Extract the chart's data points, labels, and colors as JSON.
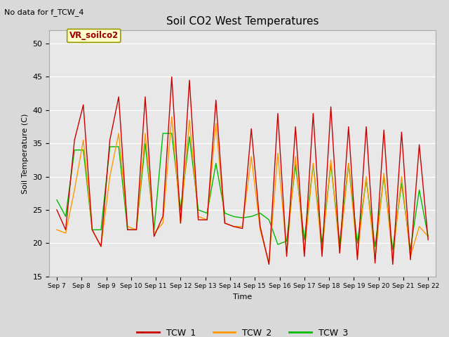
{
  "title": "Soil CO2 West Temperatures",
  "no_data_label": "No data for f_TCW_4",
  "vr_label": "VR_soilco2",
  "xlabel": "Time",
  "ylabel": "Soil Temperature (C)",
  "ylim": [
    15,
    52
  ],
  "yticks": [
    15,
    20,
    25,
    30,
    35,
    40,
    45,
    50
  ],
  "bg_color": "#e8e8e8",
  "legend_entries": [
    "TCW_1",
    "TCW_2",
    "TCW_3"
  ],
  "line_colors": [
    "#cc0000",
    "#ff9900",
    "#00bb00"
  ],
  "x_labels": [
    "Sep 7",
    "Sep 8",
    "Sep 9",
    "Sep 10",
    "Sep 11",
    "Sep 12",
    "Sep 13",
    "Sep 14",
    "Sep 15",
    "Sep 16",
    "Sep 17",
    "Sep 18",
    "Sep 19",
    "Sep 20",
    "Sep 21",
    "Sep 22"
  ],
  "tcw1": [
    25.0,
    22.0,
    35.5,
    40.8,
    22.0,
    19.5,
    35.5,
    42.0,
    22.0,
    22.0,
    42.0,
    21.0,
    24.0,
    45.0,
    23.0,
    44.5,
    23.5,
    23.5,
    41.5,
    23.0,
    22.5,
    22.2,
    37.2,
    22.5,
    16.8,
    39.5,
    18.0,
    37.5,
    18.0,
    39.5,
    18.0,
    40.5,
    18.5,
    37.5,
    17.5,
    37.5,
    17.0,
    37.0,
    16.8,
    36.7,
    17.5,
    34.8,
    20.5
  ],
  "tcw2": [
    22.0,
    21.5,
    28.0,
    35.5,
    22.0,
    19.5,
    30.0,
    36.5,
    22.5,
    22.0,
    36.5,
    21.5,
    23.0,
    39.0,
    23.0,
    38.5,
    24.0,
    23.5,
    38.0,
    23.0,
    22.5,
    22.5,
    33.0,
    22.0,
    17.0,
    33.5,
    18.5,
    33.0,
    18.5,
    32.0,
    18.5,
    32.5,
    18.5,
    32.0,
    18.0,
    30.0,
    17.5,
    30.5,
    17.5,
    30.0,
    18.0,
    22.5,
    21.0
  ],
  "tcw3": [
    26.5,
    24.0,
    34.0,
    34.0,
    22.0,
    22.0,
    34.5,
    34.5,
    22.0,
    22.0,
    35.0,
    22.0,
    36.5,
    36.5,
    25.0,
    36.0,
    25.0,
    24.5,
    32.0,
    24.5,
    24.0,
    23.8,
    24.0,
    24.5,
    23.5,
    19.8,
    20.3,
    31.8,
    20.5,
    31.8,
    20.0,
    31.8,
    20.0,
    32.0,
    20.0,
    29.5,
    19.5,
    30.0,
    19.0,
    29.0,
    19.0,
    28.0,
    21.0
  ]
}
